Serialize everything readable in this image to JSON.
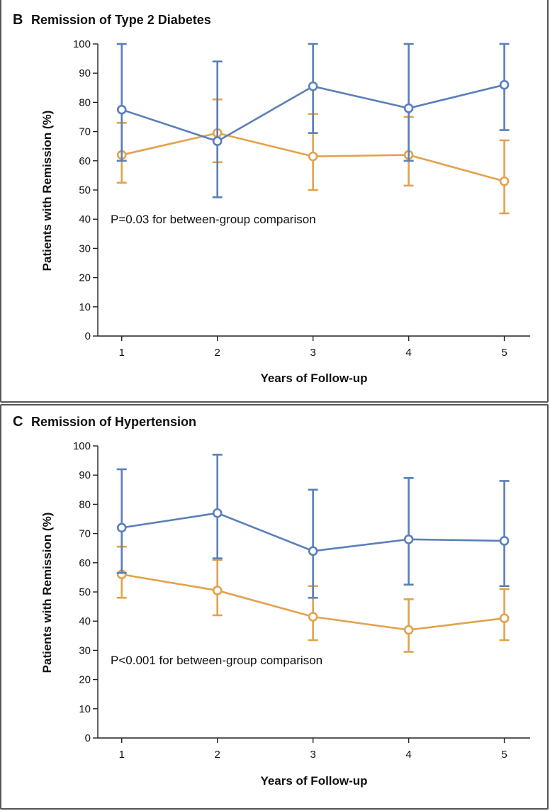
{
  "chart_data": [
    {
      "type": "line",
      "panel": "B",
      "title": "Remission of Type 2 Diabetes",
      "xlabel": "Years of Follow-up",
      "ylabel": "Patients with Remission (%)",
      "categories": [
        "1",
        "2",
        "3",
        "4",
        "5"
      ],
      "xlim": [
        0.75,
        5.27
      ],
      "ylim": [
        0,
        100
      ],
      "yticks": [
        "0",
        "10",
        "20",
        "30",
        "40",
        "50",
        "60",
        "70",
        "80",
        "90",
        "100"
      ],
      "annotation": "P=0.03 for between-group comparison",
      "series": [
        {
          "name": "blue group",
          "color": "#5a7fb8",
          "values": [
            77.5,
            66.7,
            85.5,
            78.0,
            86.0
          ],
          "ci_low": [
            60.0,
            47.5,
            69.5,
            60.0,
            70.5
          ],
          "ci_high": [
            100,
            94.0,
            100,
            100,
            100
          ]
        },
        {
          "name": "orange group",
          "color": "#e2a24d",
          "values": [
            62.0,
            69.5,
            61.5,
            62.0,
            53.0
          ],
          "ci_low": [
            52.5,
            59.5,
            50.0,
            51.5,
            42.0
          ],
          "ci_high": [
            73.0,
            81.0,
            76.0,
            75.0,
            67.0
          ]
        }
      ]
    },
    {
      "type": "line",
      "panel": "C",
      "title": "Remission of Hypertension",
      "xlabel": "Years of Follow-up",
      "ylabel": "Patients with Remission (%)",
      "categories": [
        "1",
        "2",
        "3",
        "4",
        "5"
      ],
      "xlim": [
        0.75,
        5.27
      ],
      "ylim": [
        0,
        100
      ],
      "yticks": [
        "0",
        "10",
        "20",
        "30",
        "40",
        "50",
        "60",
        "70",
        "80",
        "90",
        "100"
      ],
      "annotation": "P<0.001 for between-group comparison",
      "series": [
        {
          "name": "blue group",
          "color": "#5a7fb8",
          "values": [
            72.0,
            77.0,
            64.0,
            68.0,
            67.5
          ],
          "ci_low": [
            56.5,
            61.5,
            48.0,
            52.5,
            52.0
          ],
          "ci_high": [
            92.0,
            97.0,
            85.0,
            89.0,
            88.0
          ]
        },
        {
          "name": "orange group",
          "color": "#e2a24d",
          "values": [
            56.0,
            50.5,
            41.5,
            37.0,
            41.0
          ],
          "ci_low": [
            48.0,
            42.0,
            33.5,
            29.5,
            33.5
          ],
          "ci_high": [
            65.5,
            61.0,
            52.0,
            47.5,
            51.0
          ]
        }
      ]
    }
  ]
}
